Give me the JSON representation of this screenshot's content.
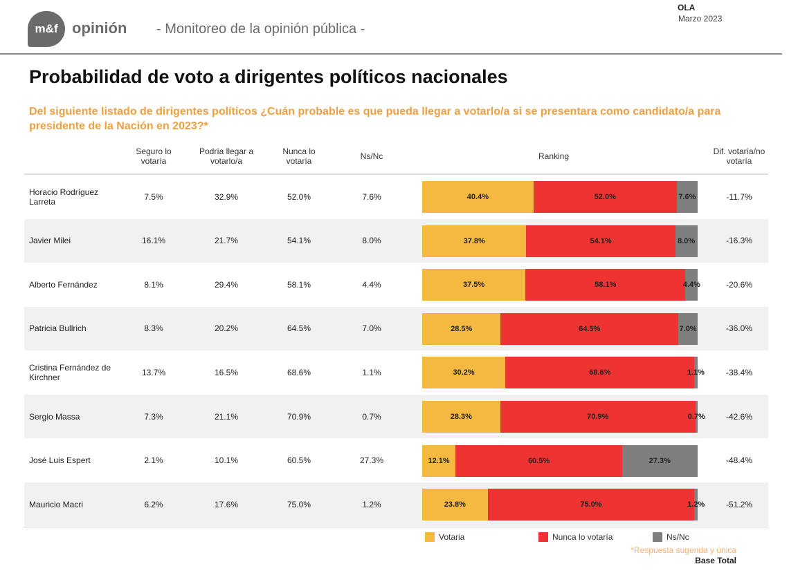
{
  "header": {
    "logo": "m&f",
    "brand": "opinión",
    "subtitle": "- Monitoreo de la opinión pública -",
    "ola": "OLA",
    "date": "Marzo 2023"
  },
  "colors": {
    "votaria": "#f5b942",
    "nunca": "#ee3333",
    "nsnc": "#7f7f7f",
    "accent": "#f0a040"
  },
  "chart_data": {
    "type": "table",
    "title": "Probabilidad de voto a dirigentes políticos nacionales",
    "question": "Del siguiente listado de dirigentes políticos ¿Cuán probable es que pueda llegar a votarlo/a si se presentara como candidato/a para presidente de la Nación en 2023?*",
    "columns": [
      "Seguro lo votaría",
      "Podría llegar a votarlo/a",
      "Nunca lo votaría",
      "Ns/Nc",
      "Ranking",
      "Dif. votaría/no votaría"
    ],
    "rows": [
      {
        "name": "Horacio Rodríguez Larreta",
        "seguro": "7.5%",
        "podria": "32.9%",
        "nunca": "52.0%",
        "nsnc": "7.6%",
        "votaria": 40.4,
        "nunca_v": 52.0,
        "nsnc_v": 7.6,
        "dif": "-11.7%"
      },
      {
        "name": "Javier Milei",
        "seguro": "16.1%",
        "podria": "21.7%",
        "nunca": "54.1%",
        "nsnc": "8.0%",
        "votaria": 37.8,
        "nunca_v": 54.1,
        "nsnc_v": 8.0,
        "dif": "-16.3%"
      },
      {
        "name": "Alberto Fernández",
        "seguro": "8.1%",
        "podria": "29.4%",
        "nunca": "58.1%",
        "nsnc": "4.4%",
        "votaria": 37.5,
        "nunca_v": 58.1,
        "nsnc_v": 4.4,
        "dif": "-20.6%"
      },
      {
        "name": "Patricia Bullrich",
        "seguro": "8.3%",
        "podria": "20.2%",
        "nunca": "64.5%",
        "nsnc": "7.0%",
        "votaria": 28.5,
        "nunca_v": 64.5,
        "nsnc_v": 7.0,
        "dif": "-36.0%"
      },
      {
        "name": "Cristina Fernández de Kirchner",
        "seguro": "13.7%",
        "podria": "16.5%",
        "nunca": "68.6%",
        "nsnc": "1.1%",
        "votaria": 30.2,
        "nunca_v": 68.6,
        "nsnc_v": 1.1,
        "dif": "-38.4%"
      },
      {
        "name": "Sergio Massa",
        "seguro": "7.3%",
        "podria": "21.1%",
        "nunca": "70.9%",
        "nsnc": "0.7%",
        "votaria": 28.3,
        "nunca_v": 70.9,
        "nsnc_v": 0.7,
        "dif": "-42.6%"
      },
      {
        "name": "José Luis Espert",
        "seguro": "2.1%",
        "podria": "10.1%",
        "nunca": "60.5%",
        "nsnc": "27.3%",
        "votaria": 12.1,
        "nunca_v": 60.5,
        "nsnc_v": 27.3,
        "dif": "-48.4%"
      },
      {
        "name": "Mauricio Macri",
        "seguro": "6.2%",
        "podria": "17.6%",
        "nunca": "75.0%",
        "nsnc": "1.2%",
        "votaria": 23.8,
        "nunca_v": 75.0,
        "nsnc_v": 1.2,
        "dif": "-51.2%"
      }
    ],
    "legend": [
      "Votaria",
      "Nunca lo  votaría",
      "Ns/Nc"
    ],
    "legend_placement": "bottom"
  },
  "footer": {
    "note": "*Respuesta sugerida y única",
    "base": "Base Total"
  }
}
